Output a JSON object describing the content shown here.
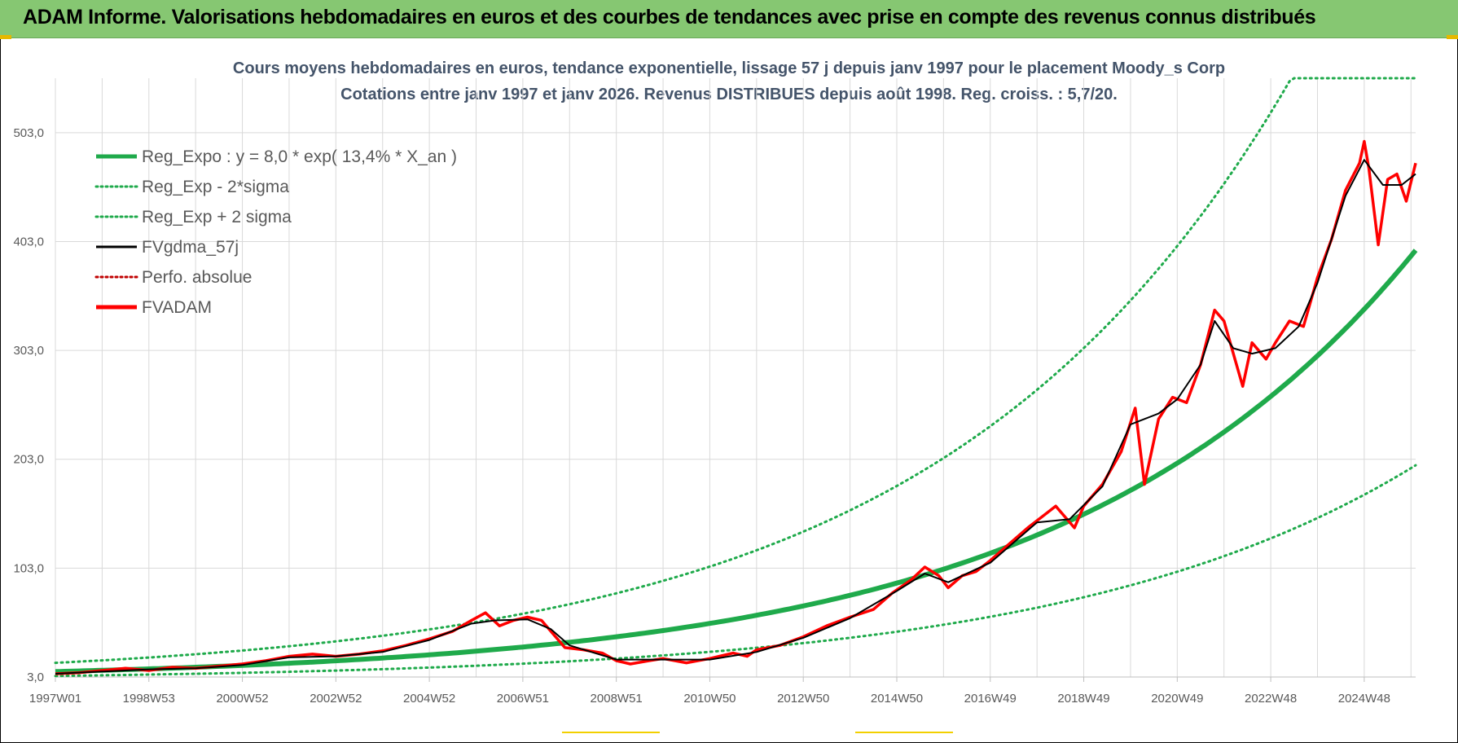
{
  "header": {
    "title": "ADAM Informe. Valorisations hebdomadaires en euros et des courbes de tendances avec prise en compte des revenus connus distribués"
  },
  "colors": {
    "banner": "#86c772",
    "trend": "#1faa4b",
    "fvgdma": "#000000",
    "fvadam": "#ff0000",
    "perfo": "#c00000",
    "grid": "#d9d9d9",
    "title_text": "#44546a"
  },
  "chart_data": {
    "type": "line",
    "title": "Cours moyens hebdomadaires en euros, tendance exponentielle, lissage 57 j depuis janv 1997 pour le placement Moody_s Corp",
    "subtitle": "Cotations entre janv 1997 et janv 2026. Revenus DISTRIBUES depuis août 1998. Reg. croiss. : 5,7/20.",
    "xlabel": "",
    "ylabel": "",
    "x_range": [
      1997.0,
      2026.1
    ],
    "ylim": [
      3,
      553
    ],
    "y_ticks": [
      3,
      103,
      203,
      303,
      403,
      503
    ],
    "y_tick_labels": [
      "3,0",
      "103,0",
      "203,0",
      "303,0",
      "403,0",
      "503,0"
    ],
    "x_ticks": [
      {
        "label": "1997W01",
        "x": 1997.0
      },
      {
        "label": "1998W53",
        "x": 1999.0
      },
      {
        "label": "2000W52",
        "x": 2001.0
      },
      {
        "label": "2002W52",
        "x": 2003.0
      },
      {
        "label": "2004W52",
        "x": 2005.0
      },
      {
        "label": "2006W51",
        "x": 2007.0
      },
      {
        "label": "2008W51",
        "x": 2009.0
      },
      {
        "label": "2010W50",
        "x": 2011.0
      },
      {
        "label": "2012W50",
        "x": 2013.0
      },
      {
        "label": "2014W50",
        "x": 2015.0
      },
      {
        "label": "2016W49",
        "x": 2017.0
      },
      {
        "label": "2018W49",
        "x": 2019.0
      },
      {
        "label": "2020W49",
        "x": 2021.0
      },
      {
        "label": "2022W48",
        "x": 2023.0
      },
      {
        "label": "2024W48",
        "x": 2025.0
      }
    ],
    "legend": [
      {
        "label": "Reg_Expo : y = 8,0 * exp( 13,4% *  X_an )",
        "style": "solid-thick",
        "color": "#1faa4b"
      },
      {
        "label": "Reg_Exp - 2*sigma",
        "style": "dotted",
        "color": "#1faa4b"
      },
      {
        "label": "Reg_Exp + 2 sigma",
        "style": "dotted",
        "color": "#1faa4b"
      },
      {
        "label": "FVgdma_57j",
        "style": "solid",
        "color": "#000000"
      },
      {
        "label": "Perfo. absolue",
        "style": "dotted",
        "color": "#c00000"
      },
      {
        "label": "FVADAM",
        "style": "solid-thick",
        "color": "#ff0000"
      }
    ],
    "regression": {
      "a": 8.0,
      "rate": 0.134,
      "x0": 1997.0,
      "x_end": 2026.1
    },
    "band_upper": {
      "start": 16,
      "rate": 0.134,
      "cap": 553
    },
    "band_lower": {
      "start": 4,
      "rate": 0.134
    },
    "series": [
      {
        "name": "FVADAM",
        "points": [
          [
            1997.0,
            6
          ],
          [
            1997.5,
            7
          ],
          [
            1998.0,
            9
          ],
          [
            1998.5,
            11
          ],
          [
            1999.0,
            9
          ],
          [
            1999.5,
            12
          ],
          [
            2000.0,
            11
          ],
          [
            2000.5,
            13
          ],
          [
            2001.0,
            15
          ],
          [
            2001.5,
            18
          ],
          [
            2002.0,
            22
          ],
          [
            2002.5,
            24
          ],
          [
            2003.0,
            22
          ],
          [
            2003.5,
            24
          ],
          [
            2004.0,
            27
          ],
          [
            2004.5,
            32
          ],
          [
            2005.0,
            38
          ],
          [
            2005.5,
            45
          ],
          [
            2005.9,
            55
          ],
          [
            2006.2,
            62
          ],
          [
            2006.5,
            50
          ],
          [
            2006.8,
            55
          ],
          [
            2007.1,
            58
          ],
          [
            2007.4,
            55
          ],
          [
            2007.6,
            45
          ],
          [
            2007.9,
            30
          ],
          [
            2008.3,
            28
          ],
          [
            2008.7,
            25
          ],
          [
            2009.0,
            18
          ],
          [
            2009.3,
            15
          ],
          [
            2009.7,
            18
          ],
          [
            2010.0,
            20
          ],
          [
            2010.5,
            16
          ],
          [
            2011.0,
            20
          ],
          [
            2011.5,
            25
          ],
          [
            2011.8,
            22
          ],
          [
            2012.0,
            28
          ],
          [
            2012.5,
            32
          ],
          [
            2013.0,
            40
          ],
          [
            2013.5,
            50
          ],
          [
            2014.0,
            58
          ],
          [
            2014.5,
            65
          ],
          [
            2014.9,
            80
          ],
          [
            2015.3,
            92
          ],
          [
            2015.6,
            104
          ],
          [
            2015.9,
            96
          ],
          [
            2016.1,
            85
          ],
          [
            2016.4,
            96
          ],
          [
            2016.7,
            100
          ],
          [
            2017.0,
            110
          ],
          [
            2017.4,
            125
          ],
          [
            2017.8,
            140
          ],
          [
            2018.1,
            150
          ],
          [
            2018.4,
            160
          ],
          [
            2018.8,
            140
          ],
          [
            2019.0,
            160
          ],
          [
            2019.4,
            180
          ],
          [
            2019.8,
            210
          ],
          [
            2020.1,
            250
          ],
          [
            2020.3,
            180
          ],
          [
            2020.6,
            240
          ],
          [
            2020.9,
            260
          ],
          [
            2021.2,
            255
          ],
          [
            2021.5,
            290
          ],
          [
            2021.8,
            340
          ],
          [
            2022.0,
            330
          ],
          [
            2022.2,
            300
          ],
          [
            2022.4,
            270
          ],
          [
            2022.6,
            310
          ],
          [
            2022.9,
            295
          ],
          [
            2023.1,
            310
          ],
          [
            2023.4,
            330
          ],
          [
            2023.7,
            325
          ],
          [
            2024.0,
            370
          ],
          [
            2024.3,
            405
          ],
          [
            2024.6,
            450
          ],
          [
            2024.9,
            475
          ],
          [
            2025.0,
            495
          ],
          [
            2025.1,
            470
          ],
          [
            2025.3,
            400
          ],
          [
            2025.5,
            460
          ],
          [
            2025.7,
            465
          ],
          [
            2025.9,
            440
          ],
          [
            2026.1,
            475
          ]
        ]
      },
      {
        "name": "FVgdma_57j",
        "points": [
          [
            1997.0,
            6
          ],
          [
            1998.0,
            8
          ],
          [
            1999.0,
            10
          ],
          [
            2000.0,
            11
          ],
          [
            2001.0,
            14
          ],
          [
            2002.0,
            21
          ],
          [
            2003.0,
            22
          ],
          [
            2004.0,
            26
          ],
          [
            2005.0,
            37
          ],
          [
            2005.9,
            52
          ],
          [
            2006.4,
            55
          ],
          [
            2007.1,
            56
          ],
          [
            2007.6,
            47
          ],
          [
            2008.0,
            32
          ],
          [
            2009.0,
            19
          ],
          [
            2010.0,
            19
          ],
          [
            2011.0,
            19
          ],
          [
            2012.0,
            26
          ],
          [
            2013.0,
            39
          ],
          [
            2014.0,
            57
          ],
          [
            2015.0,
            82
          ],
          [
            2015.6,
            98
          ],
          [
            2016.1,
            90
          ],
          [
            2017.0,
            108
          ],
          [
            2018.0,
            145
          ],
          [
            2018.7,
            148
          ],
          [
            2019.4,
            178
          ],
          [
            2020.0,
            235
          ],
          [
            2020.6,
            245
          ],
          [
            2021.0,
            258
          ],
          [
            2021.5,
            290
          ],
          [
            2021.8,
            330
          ],
          [
            2022.2,
            305
          ],
          [
            2022.6,
            300
          ],
          [
            2023.1,
            305
          ],
          [
            2023.6,
            325
          ],
          [
            2024.0,
            365
          ],
          [
            2024.6,
            445
          ],
          [
            2025.0,
            478
          ],
          [
            2025.4,
            455
          ],
          [
            2025.8,
            455
          ],
          [
            2026.1,
            465
          ]
        ]
      }
    ]
  }
}
